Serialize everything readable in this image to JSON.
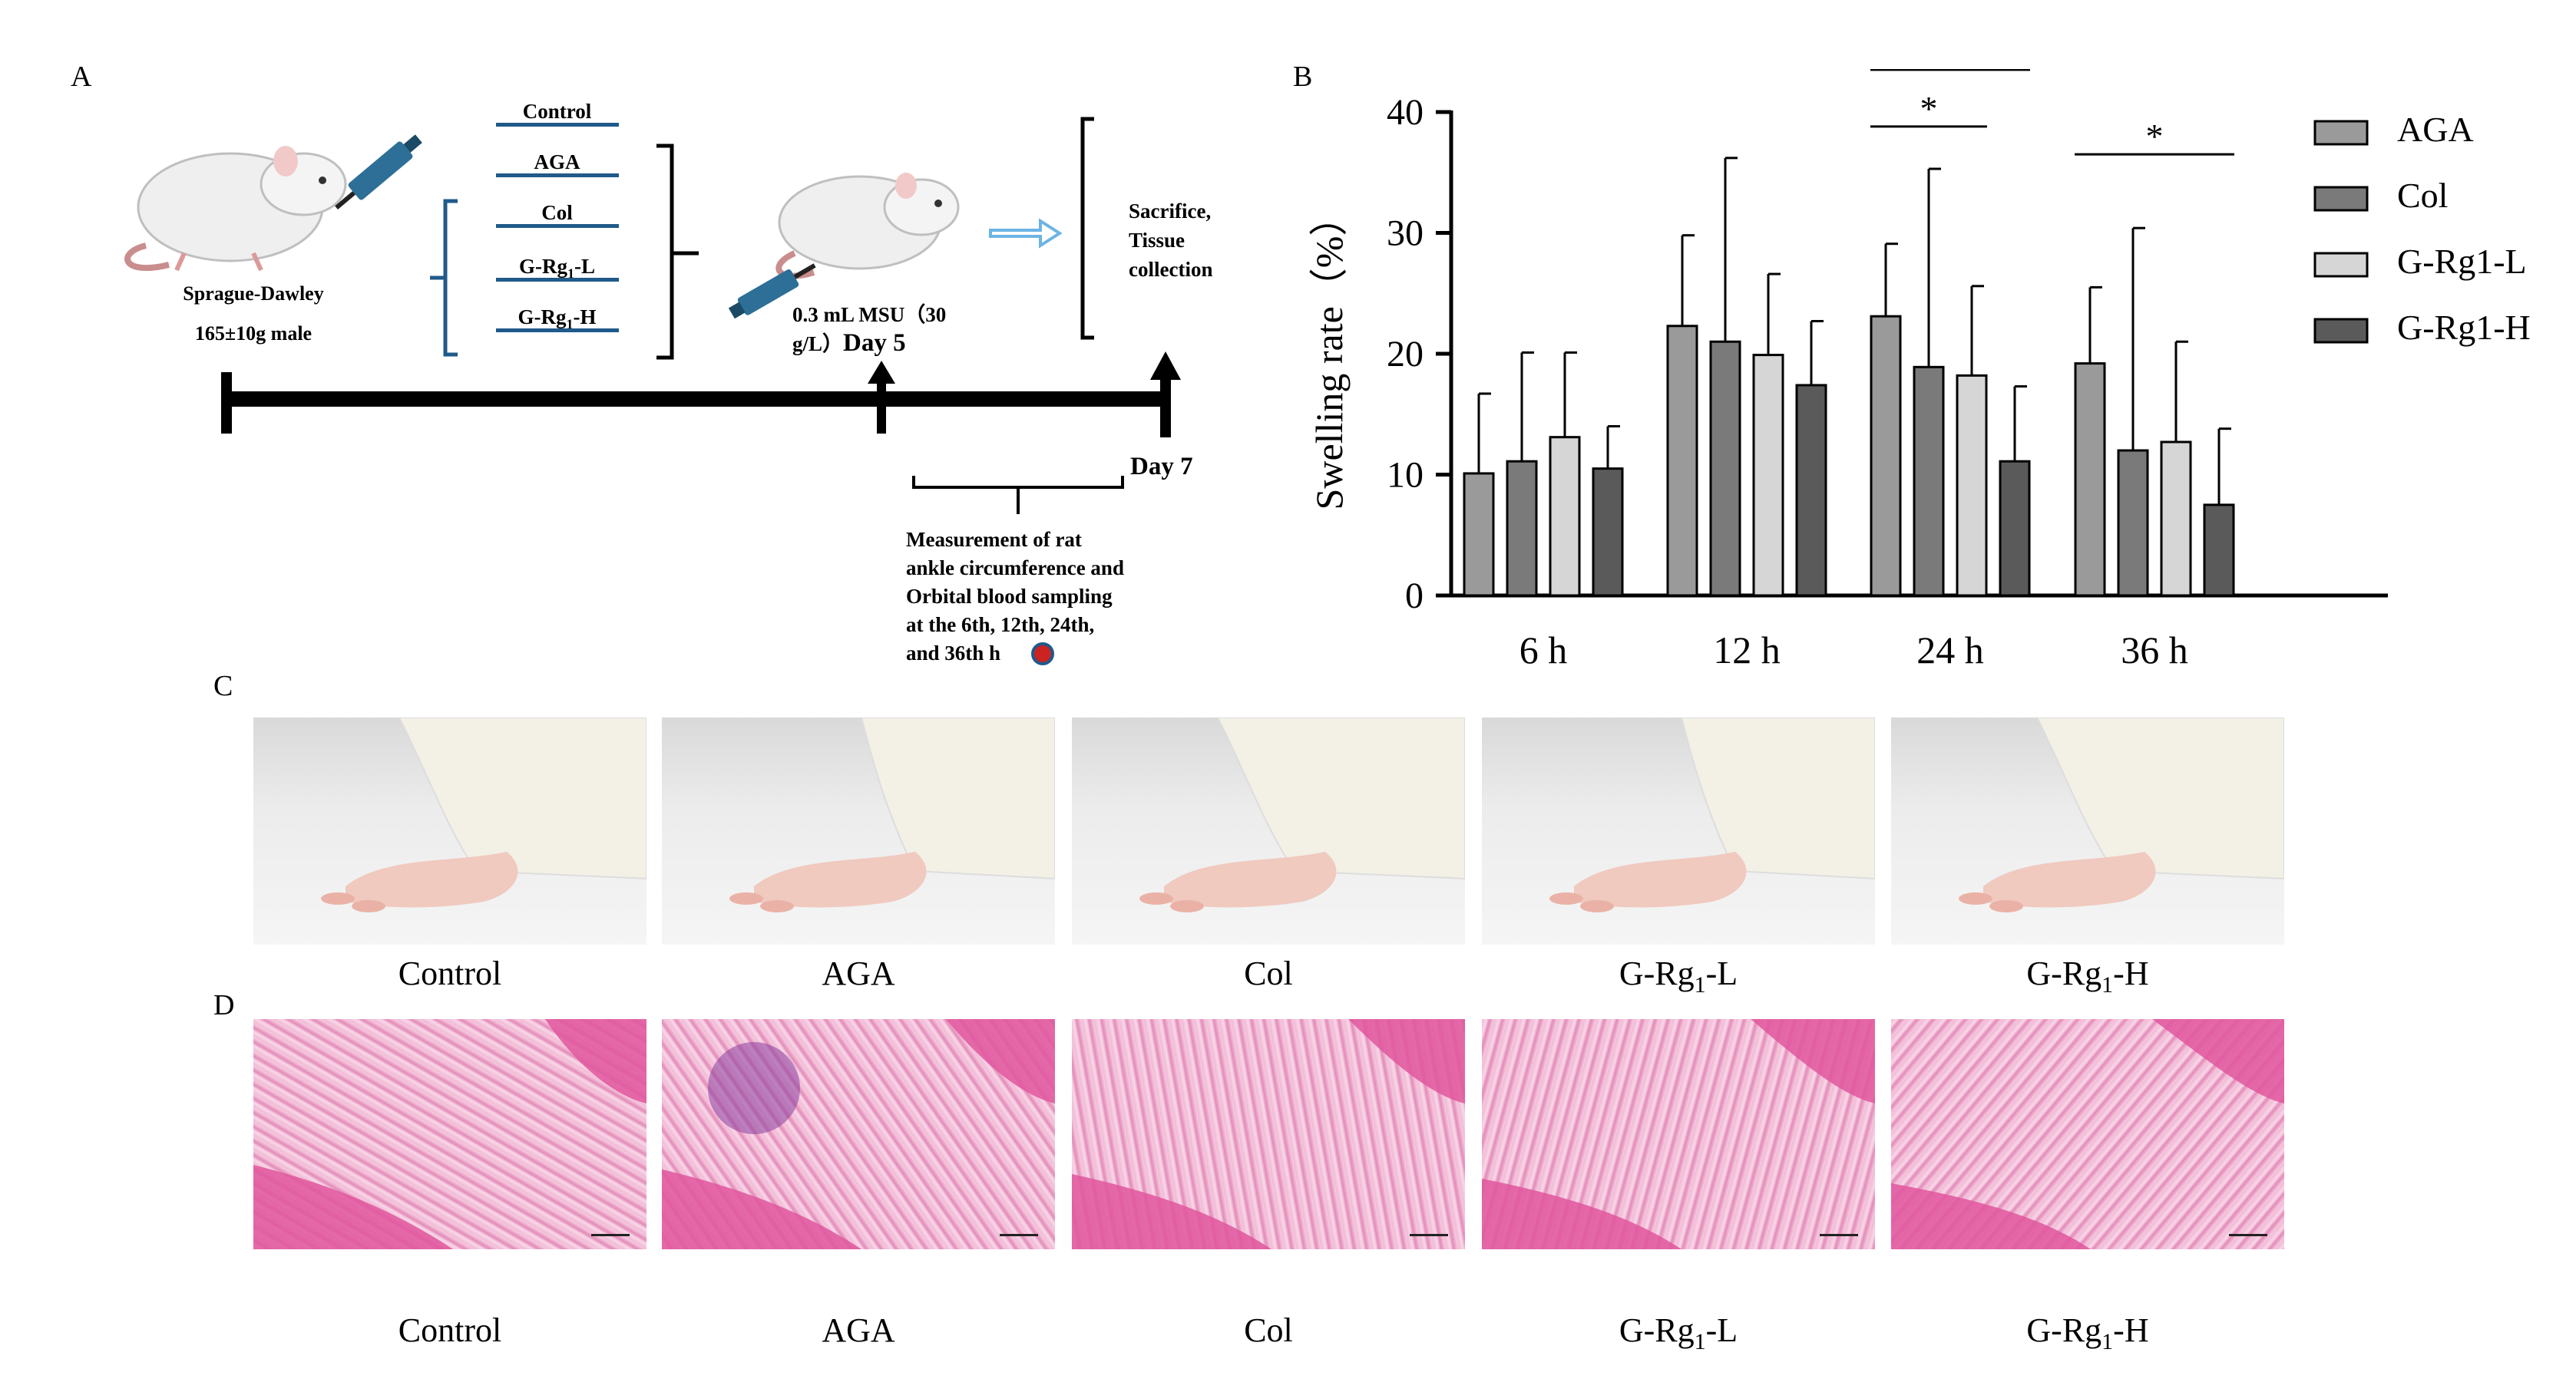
{
  "panels": {
    "a": "A",
    "b": "B",
    "c": "C",
    "d": "D"
  },
  "schematic": {
    "rat_name": "Sprague-Dawley",
    "rat_desc": "165±10g male",
    "groups": [
      "Control",
      "AGA",
      "Col",
      "G-Rg",
      "G-Rg"
    ],
    "groups_sub": [
      "",
      "",
      "",
      "1",
      "1"
    ],
    "groups_suffix": [
      "",
      "",
      "",
      "-L",
      "-H"
    ],
    "msu_line1": "0.3 mL MSU（30",
    "msu_line2": "g/L）",
    "msu_day": "Day 5",
    "end_line1": "Sacrifice,",
    "end_line2": "Tissue",
    "end_line3": "collection",
    "day7": "Day 7",
    "measure": [
      "Measurement of rat",
      "ankle circumference and",
      "Orbital blood sampling",
      "at the 6th, 12th, 24th,",
      "and 36th h"
    ]
  },
  "chart_data": {
    "type": "bar",
    "ylabel": "Swelling rate（%）",
    "ylim": [
      0,
      40
    ],
    "yticks": [
      0,
      10,
      20,
      30,
      40
    ],
    "categories": [
      "6 h",
      "12 h",
      "24 h",
      "36 h"
    ],
    "series": [
      {
        "name": "AGA",
        "values": [
          10.1,
          22.3,
          23.1,
          19.2
        ],
        "errors": [
          6.6,
          7.5,
          6.0,
          6.3
        ],
        "color": "#9a9a9a"
      },
      {
        "name": "Col",
        "values": [
          11.1,
          21.0,
          18.9,
          12.0
        ],
        "errors": [
          9.0,
          15.2,
          16.4,
          18.4
        ],
        "color": "#7a7a7a"
      },
      {
        "name": "G-Rg1-L",
        "values": [
          13.1,
          19.9,
          18.2,
          12.7
        ],
        "errors": [
          7.0,
          6.7,
          7.4,
          8.3
        ],
        "color": "#d6d6d6"
      },
      {
        "name": "G-Rg1-H",
        "values": [
          10.5,
          17.4,
          11.1,
          7.5
        ],
        "errors": [
          3.5,
          5.3,
          6.2,
          6.3
        ],
        "color": "#5a5a5a"
      }
    ],
    "annotations": [
      {
        "text": "*",
        "category": "24 h",
        "from_series": 0,
        "to_series": 3,
        "level": 43.5
      },
      {
        "text": "*",
        "category": "24 h",
        "from_series": 0,
        "to_series": 2,
        "level": 38.8
      },
      {
        "text": "*",
        "category": "36 h",
        "from_series": 0,
        "to_series": 3,
        "level": 36.5
      }
    ],
    "legend_position": "right"
  },
  "photos": {
    "captions": [
      {
        "main": "Control",
        "sub": "",
        "suffix": ""
      },
      {
        "main": "AGA",
        "sub": "",
        "suffix": ""
      },
      {
        "main": "Col",
        "sub": "",
        "suffix": ""
      },
      {
        "main": "G-Rg",
        "sub": "1",
        "suffix": "-L"
      },
      {
        "main": "G-Rg",
        "sub": "1",
        "suffix": "-H"
      }
    ]
  },
  "histology": {
    "captions": [
      {
        "main": "Control",
        "sub": "",
        "suffix": ""
      },
      {
        "main": "AGA",
        "sub": "",
        "suffix": ""
      },
      {
        "main": "Col",
        "sub": "",
        "suffix": ""
      },
      {
        "main": "G-Rg",
        "sub": "1",
        "suffix": "-L"
      },
      {
        "main": "G-Rg",
        "sub": "1",
        "suffix": "-H"
      }
    ]
  },
  "colors": {
    "accent_blue": "#1f5a8a",
    "arrow_blue": "#6cb4e4",
    "tissue_pink": "#e0569e"
  }
}
